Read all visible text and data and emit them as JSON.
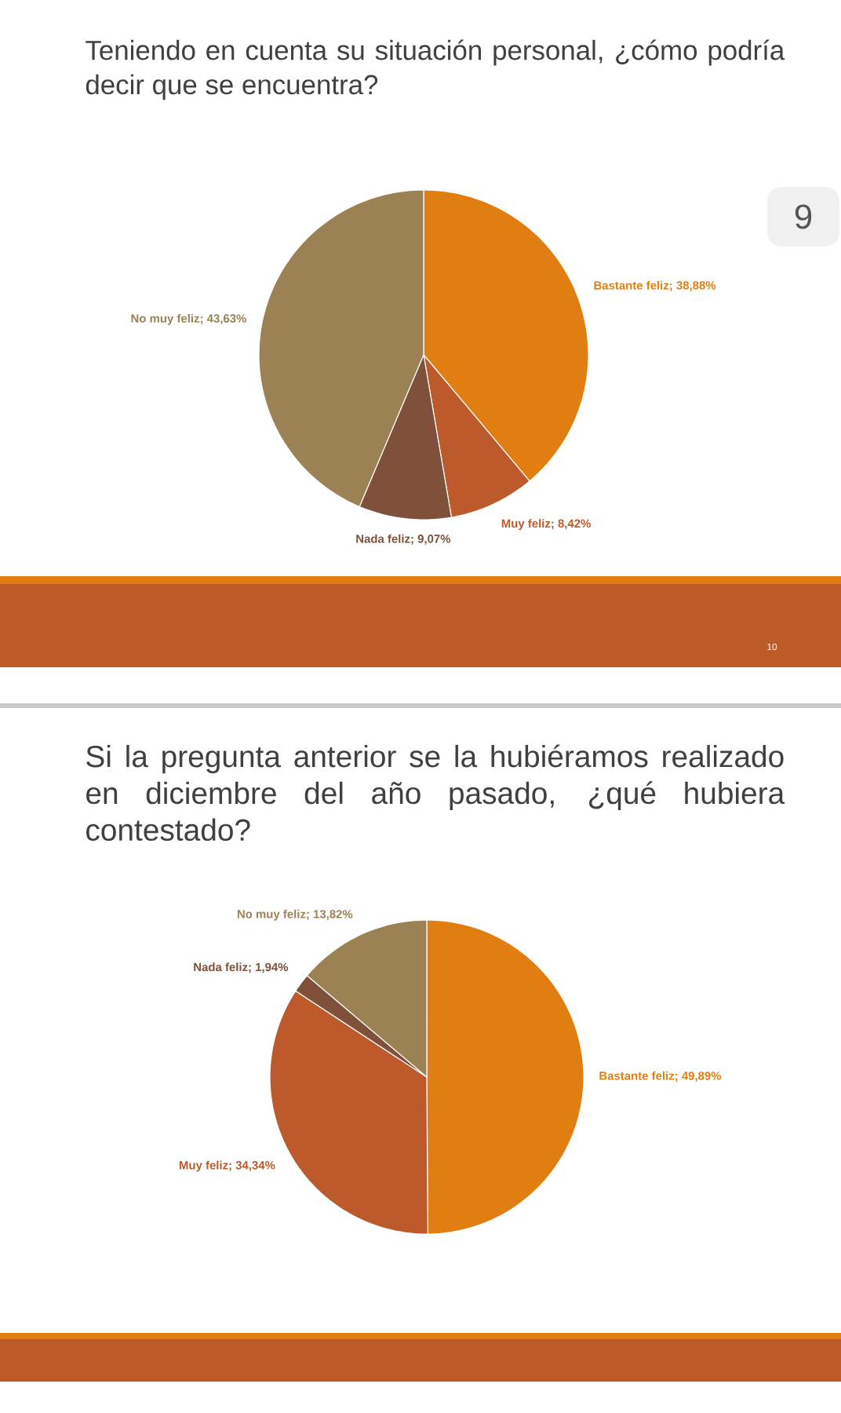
{
  "chart_data": [
    {
      "type": "pie",
      "title": "Teniendo en cuenta su situación personal, ¿cómo podría decir que se encuentra?",
      "categories": [
        "Bastante feliz",
        "Muy feliz",
        "Nada feliz",
        "No muy feliz"
      ],
      "values": [
        38.88,
        8.42,
        9.07,
        43.63
      ],
      "colors": [
        "#e07e12",
        "#bd5a2b",
        "#7f513b",
        "#9c8155"
      ],
      "value_labels": [
        "; 38,88%",
        "; 8,42%",
        "; 9,07%",
        "; 43,63%"
      ],
      "annotations": [
        "10",
        "9"
      ]
    },
    {
      "type": "pie",
      "title": "Si la pregunta anterior se la hubiéramos realizado en diciembre del año pasado, ¿qué hubiera contestado?",
      "categories": [
        "Bastante feliz",
        "Muy feliz",
        "Nada feliz",
        "No muy feliz"
      ],
      "values": [
        49.89,
        34.34,
        1.94,
        13.82
      ],
      "colors": [
        "#e07e12",
        "#bd5a2b",
        "#7f513b",
        "#9c8155"
      ],
      "value_labels": [
        "; 49,89%",
        "; 34,34%",
        "; 1,94%",
        "; 13,82%"
      ]
    }
  ]
}
